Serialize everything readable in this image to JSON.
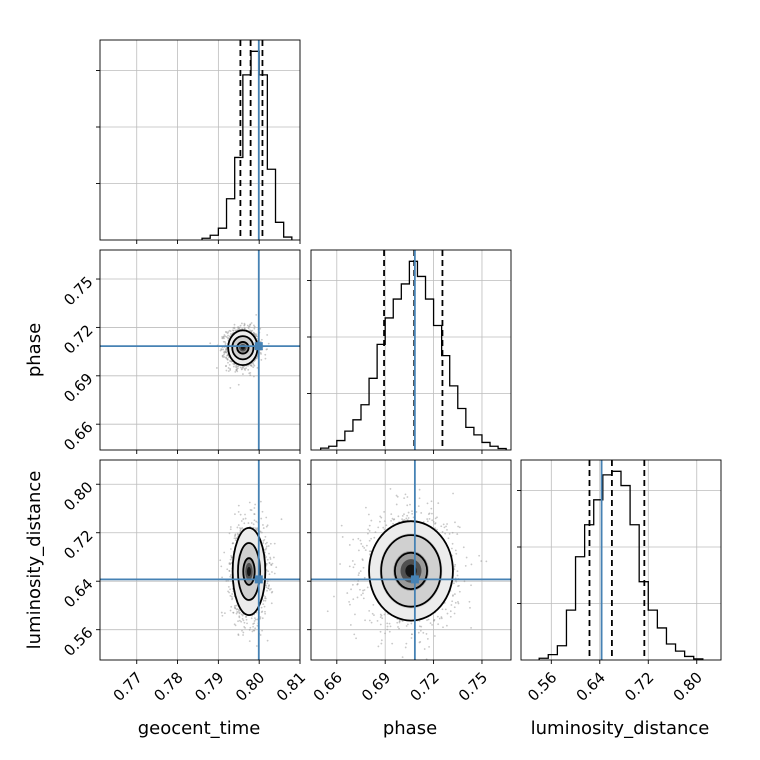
{
  "chart_data": {
    "type": "corner",
    "parameters": [
      "geocent_time",
      "phase",
      "luminosity_distance"
    ],
    "ranges": {
      "geocent_time": [
        0.761,
        0.81
      ],
      "phase": [
        0.644,
        0.768
      ],
      "luminosity_distance": [
        0.51,
        0.84
      ]
    },
    "ticks": {
      "geocent_time": [
        0.77,
        0.78,
        0.79,
        0.8,
        0.81
      ],
      "phase": [
        0.66,
        0.69,
        0.72,
        0.75
      ],
      "luminosity_distance": [
        0.56,
        0.64,
        0.72,
        0.8
      ]
    },
    "tick_labels": {
      "geocent_time": [
        "0.77",
        "0.78",
        "0.79",
        "0.80",
        "0.81"
      ],
      "phase": [
        "0.66",
        "0.69",
        "0.72",
        "0.75"
      ],
      "luminosity_distance": [
        "0.56",
        "0.64",
        "0.72",
        "0.80"
      ]
    },
    "truths": {
      "geocent_time": 0.7999,
      "phase": 0.7084,
      "luminosity_distance": 0.643
    },
    "quantiles": {
      "geocent_time": [
        0.7954,
        0.7979,
        0.8008
      ],
      "phase": [
        0.6893,
        0.708,
        0.7255
      ],
      "luminosity_distance": [
        0.623,
        0.66,
        0.7135
      ]
    },
    "histograms": {
      "geocent_time": {
        "edges": [
          0.786,
          0.788,
          0.79,
          0.792,
          0.794,
          0.796,
          0.798,
          0.8,
          0.802,
          0.804,
          0.806,
          0.808
        ],
        "counts": [
          0.3,
          0.8,
          2,
          7,
          14,
          28,
          32,
          28,
          12,
          3,
          0.5
        ]
      },
      "phase": {
        "edges": [
          0.65,
          0.655,
          0.66,
          0.665,
          0.67,
          0.675,
          0.68,
          0.685,
          0.69,
          0.695,
          0.7,
          0.705,
          0.71,
          0.715,
          0.72,
          0.725,
          0.73,
          0.735,
          0.74,
          0.745,
          0.75,
          0.755,
          0.76,
          0.765
        ],
        "counts": [
          0.5,
          1,
          2.5,
          5,
          8,
          12,
          19,
          28,
          35,
          40,
          44,
          50,
          46,
          40,
          33,
          25,
          17,
          11,
          6,
          4,
          2,
          1,
          0.4
        ]
      },
      "luminosity_distance": {
        "edges": [
          0.54,
          0.555,
          0.57,
          0.585,
          0.6,
          0.615,
          0.63,
          0.645,
          0.66,
          0.675,
          0.69,
          0.705,
          0.72,
          0.735,
          0.75,
          0.765,
          0.78,
          0.795,
          0.81
        ],
        "counts": [
          0.5,
          1.5,
          4,
          14,
          29,
          38,
          45,
          52,
          53,
          49,
          38,
          22,
          14,
          9,
          4.5,
          2.5,
          1,
          0.3
        ]
      }
    },
    "contours_2d": [
      {
        "x_param": "geocent_time",
        "y_param": "phase",
        "center": [
          0.796,
          0.7074
        ],
        "contour_radii": [
          [
            0.0036,
            0.0108
          ],
          [
            0.0026,
            0.0072
          ],
          [
            0.0014,
            0.0036
          ]
        ]
      },
      {
        "x_param": "geocent_time",
        "y_param": "luminosity_distance",
        "center": [
          0.7975,
          0.656
        ],
        "contour_radii": [
          [
            0.004,
            0.072
          ],
          [
            0.0027,
            0.047
          ],
          [
            0.0014,
            0.022
          ]
        ]
      },
      {
        "x_param": "phase",
        "y_param": "luminosity_distance",
        "center": [
          0.706,
          0.657
        ],
        "contour_radii": [
          [
            0.026,
            0.082
          ],
          [
            0.0185,
            0.059
          ],
          [
            0.01,
            0.03
          ]
        ]
      }
    ],
    "grid": true
  }
}
